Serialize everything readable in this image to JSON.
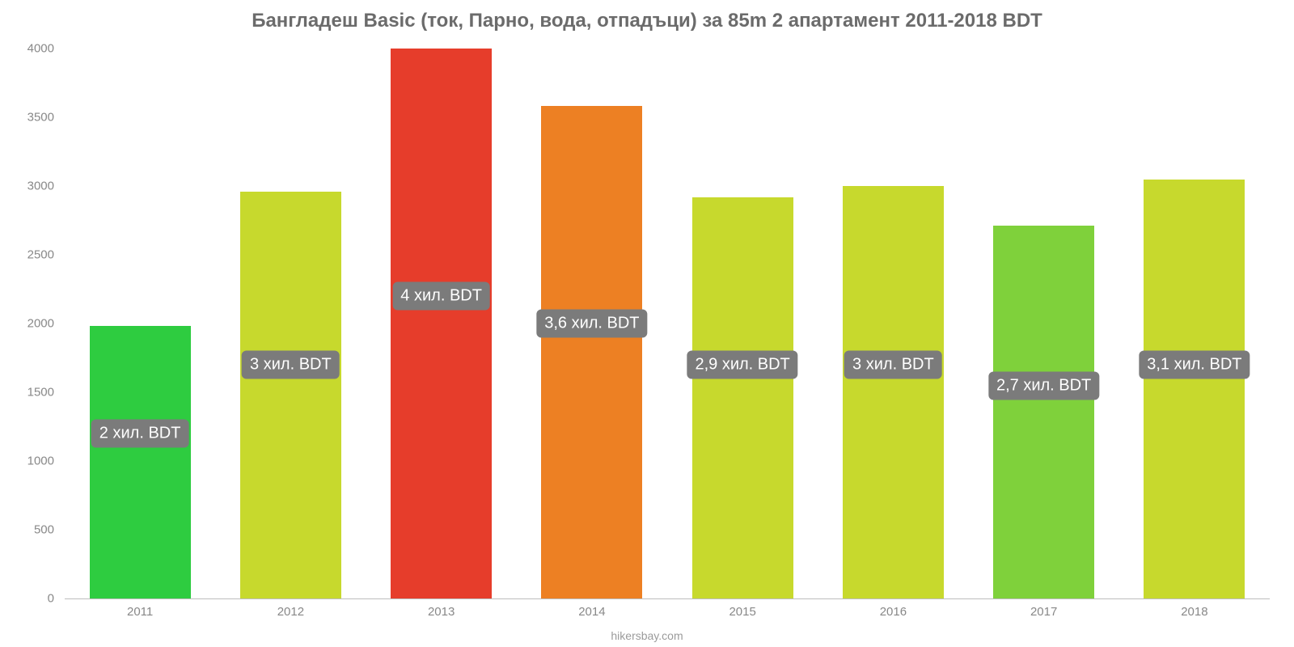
{
  "chart": {
    "type": "bar",
    "title": "Бангладеш Basic (ток, Парно, вода, отпадъци) за 85m 2 апартамент 2011-2018 BDT",
    "title_fontsize": 24,
    "title_color": "#6b6b6b",
    "background_color": "#ffffff",
    "footer": "hikersbay.com",
    "footer_color": "#9b9b9b",
    "ylim": [
      0,
      4000
    ],
    "yticks": [
      0,
      500,
      1000,
      1500,
      2000,
      2500,
      3000,
      3500,
      4000
    ],
    "axis_label_color": "#888888",
    "axis_fontsize": 15,
    "baseline_color": "#bdbdbd",
    "bar_width_ratio": 0.67,
    "label_bg": "#7b7b7b",
    "label_color": "#ffffff",
    "label_fontsize": 20,
    "label_y_value": 1250,
    "categories": [
      "2011",
      "2012",
      "2013",
      "2014",
      "2015",
      "2016",
      "2017",
      "2018"
    ],
    "values": [
      1980,
      2960,
      4000,
      3580,
      2920,
      3000,
      2710,
      3050
    ],
    "bar_colors": [
      "#2ecc40",
      "#c7d92d",
      "#e63d2b",
      "#ed8023",
      "#c7d92d",
      "#c7d92d",
      "#7fd13b",
      "#c7d92d"
    ],
    "value_labels": [
      "2 хил. BDT",
      "3 хил. BDT",
      "4 хил. BDT",
      "3,6 хил. BDT",
      "2,9 хил. BDT",
      "3 хил. BDT",
      "2,7 хил. BDT",
      "3,1 хил. BDT"
    ],
    "label_y_values": [
      1200,
      1700,
      2200,
      2000,
      1700,
      1700,
      1550,
      1700
    ]
  }
}
